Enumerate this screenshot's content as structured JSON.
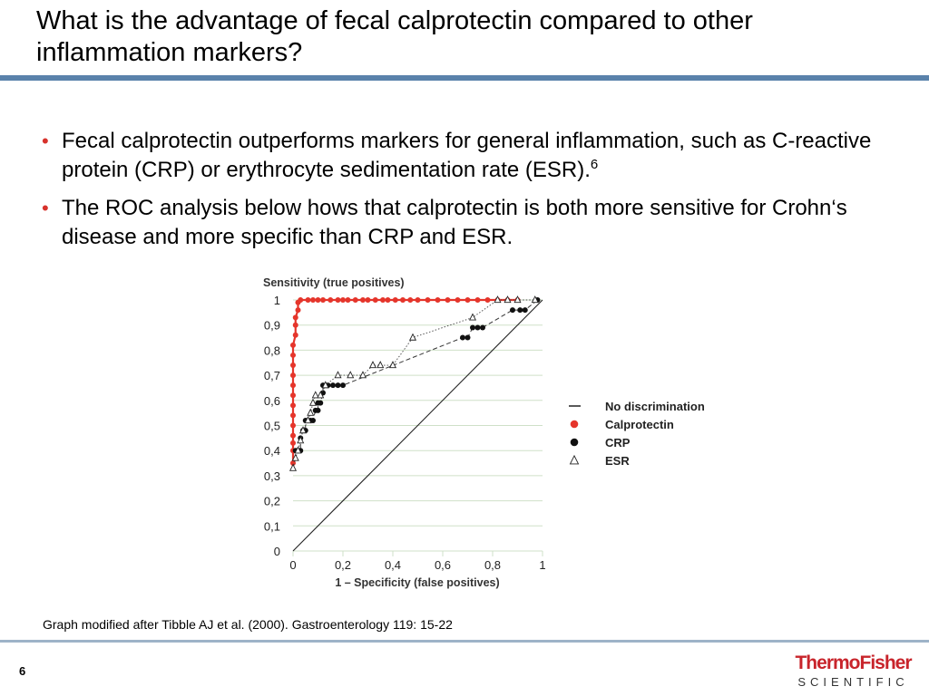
{
  "slide": {
    "title": "What is the advantage of fecal calprotectin compared to other inflammation markers?",
    "bullets": [
      {
        "text": "Fecal calprotectin outperforms markers for general inflammation, such as C-reactive protein (CRP) or erythrocyte sedimentation rate (ESR).",
        "sup": "6"
      },
      {
        "text": "The ROC analysis below hows that calprotectin is both more sensitive for Crohn‘s disease and more specific than CRP and ESR.",
        "sup": ""
      }
    ],
    "caption": "Graph modified after Tibble AJ et al. (2000). Gastroenterology 119: 15-22",
    "page_number": "6",
    "logo": {
      "line1": "ThermoFisher",
      "line2": "SCIENTIFIC"
    },
    "colors": {
      "accent_rule": "#5a82ab",
      "bullet": "#d7322c",
      "logo_red": "#c8242b"
    }
  },
  "chart_data": {
    "type": "scatter",
    "ylabel": "Sensitivity (true positives)",
    "xlabel": "1 – Specificity (false positives)",
    "xlim": [
      0,
      1
    ],
    "ylim": [
      0,
      1
    ],
    "xticks": [
      "0",
      "0,2",
      "0,4",
      "0,6",
      "0,8",
      "1"
    ],
    "yticks": [
      "0",
      "0,1",
      "0,2",
      "0,3",
      "0,4",
      "0,5",
      "0,6",
      "0,7",
      "0,8",
      "0,9",
      "1"
    ],
    "grid": true,
    "legend_position": "right",
    "series": [
      {
        "name": "No discrimination",
        "marker": "line",
        "color": "#222222",
        "points": [
          [
            0,
            0
          ],
          [
            1,
            1
          ]
        ]
      },
      {
        "name": "Calprotectin",
        "marker": "filled-circle",
        "color": "#e5352b",
        "points": [
          [
            0,
            0.35
          ],
          [
            0,
            0.4
          ],
          [
            0,
            0.43
          ],
          [
            0,
            0.46
          ],
          [
            0,
            0.5
          ],
          [
            0,
            0.54
          ],
          [
            0,
            0.58
          ],
          [
            0,
            0.62
          ],
          [
            0,
            0.66
          ],
          [
            0,
            0.7
          ],
          [
            0,
            0.74
          ],
          [
            0,
            0.78
          ],
          [
            0,
            0.82
          ],
          [
            0.01,
            0.86
          ],
          [
            0.01,
            0.9
          ],
          [
            0.01,
            0.93
          ],
          [
            0.02,
            0.96
          ],
          [
            0.02,
            0.99
          ],
          [
            0.03,
            1
          ],
          [
            0.06,
            1
          ],
          [
            0.08,
            1
          ],
          [
            0.1,
            1
          ],
          [
            0.12,
            1
          ],
          [
            0.15,
            1
          ],
          [
            0.18,
            1
          ],
          [
            0.2,
            1
          ],
          [
            0.22,
            1
          ],
          [
            0.25,
            1
          ],
          [
            0.28,
            1
          ],
          [
            0.3,
            1
          ],
          [
            0.33,
            1
          ],
          [
            0.36,
            1
          ],
          [
            0.38,
            1
          ],
          [
            0.41,
            1
          ],
          [
            0.44,
            1
          ],
          [
            0.47,
            1
          ],
          [
            0.5,
            1
          ],
          [
            0.54,
            1
          ],
          [
            0.58,
            1
          ],
          [
            0.62,
            1
          ],
          [
            0.66,
            1
          ],
          [
            0.7,
            1
          ],
          [
            0.74,
            1
          ],
          [
            0.78,
            1
          ],
          [
            0.82,
            1
          ],
          [
            0.86,
            1
          ],
          [
            0.9,
            1
          ]
        ]
      },
      {
        "name": "CRP",
        "marker": "filled-circle",
        "color": "#111111",
        "points": [
          [
            0.01,
            0.4
          ],
          [
            0.02,
            0.4
          ],
          [
            0.03,
            0.4
          ],
          [
            0.03,
            0.45
          ],
          [
            0.04,
            0.48
          ],
          [
            0.05,
            0.48
          ],
          [
            0.05,
            0.52
          ],
          [
            0.07,
            0.52
          ],
          [
            0.08,
            0.52
          ],
          [
            0.09,
            0.56
          ],
          [
            0.1,
            0.56
          ],
          [
            0.1,
            0.59
          ],
          [
            0.11,
            0.59
          ],
          [
            0.12,
            0.63
          ],
          [
            0.12,
            0.66
          ],
          [
            0.14,
            0.66
          ],
          [
            0.16,
            0.66
          ],
          [
            0.18,
            0.66
          ],
          [
            0.2,
            0.66
          ],
          [
            0.68,
            0.85
          ],
          [
            0.7,
            0.85
          ],
          [
            0.72,
            0.89
          ],
          [
            0.74,
            0.89
          ],
          [
            0.76,
            0.89
          ],
          [
            0.88,
            0.96
          ],
          [
            0.91,
            0.96
          ],
          [
            0.93,
            0.96
          ],
          [
            0.98,
            1
          ]
        ]
      },
      {
        "name": "ESR",
        "marker": "open-triangle",
        "color": "#222222",
        "points": [
          [
            0,
            0.33
          ],
          [
            0.01,
            0.37
          ],
          [
            0.02,
            0.4
          ],
          [
            0.03,
            0.44
          ],
          [
            0.04,
            0.48
          ],
          [
            0.06,
            0.52
          ],
          [
            0.07,
            0.55
          ],
          [
            0.08,
            0.59
          ],
          [
            0.09,
            0.62
          ],
          [
            0.11,
            0.62
          ],
          [
            0.13,
            0.66
          ],
          [
            0.18,
            0.7
          ],
          [
            0.23,
            0.7
          ],
          [
            0.28,
            0.7
          ],
          [
            0.32,
            0.74
          ],
          [
            0.35,
            0.74
          ],
          [
            0.4,
            0.74
          ],
          [
            0.48,
            0.85
          ],
          [
            0.72,
            0.93
          ],
          [
            0.82,
            1
          ],
          [
            0.86,
            1
          ],
          [
            0.9,
            1
          ],
          [
            0.97,
            1
          ]
        ]
      }
    ]
  }
}
